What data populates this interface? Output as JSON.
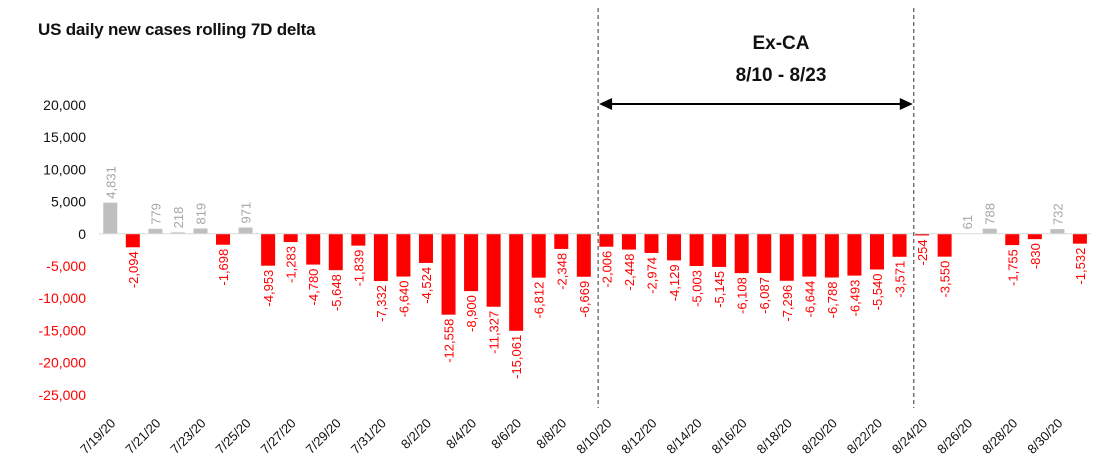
{
  "chart_data": {
    "type": "bar",
    "title": "US daily new cases rolling 7D delta",
    "xlabel": "",
    "ylabel": "",
    "ylim": [
      -25000,
      20000
    ],
    "yticks": [
      20000,
      15000,
      10000,
      5000,
      0,
      -5000,
      -10000,
      -15000,
      -20000,
      -25000
    ],
    "ytick_labels": [
      "20,000",
      "15,000",
      "10,000",
      "5,000",
      "0",
      "-5,000",
      "-10,000",
      "-15,000",
      "-20,000",
      "-25,000"
    ],
    "categories": [
      "7/19/20",
      "7/20/20",
      "7/21/20",
      "7/22/20",
      "7/23/20",
      "7/24/20",
      "7/25/20",
      "7/26/20",
      "7/27/20",
      "7/28/20",
      "7/29/20",
      "7/30/20",
      "7/31/20",
      "8/1/20",
      "8/2/20",
      "8/3/20",
      "8/4/20",
      "8/5/20",
      "8/6/20",
      "8/7/20",
      "8/8/20",
      "8/9/20",
      "8/10/20",
      "8/11/20",
      "8/12/20",
      "8/13/20",
      "8/14/20",
      "8/15/20",
      "8/16/20",
      "8/17/20",
      "8/18/20",
      "8/19/20",
      "8/20/20",
      "8/21/20",
      "8/22/20",
      "8/23/20",
      "8/24/20",
      "8/25/20",
      "8/26/20",
      "8/27/20",
      "8/28/20",
      "8/29/20",
      "8/30/20",
      "8/31/20"
    ],
    "values": [
      4831,
      -2094,
      779,
      218,
      819,
      -1698,
      971,
      -4953,
      -1283,
      -4780,
      -5648,
      -1839,
      -7332,
      -6640,
      -4524,
      -12558,
      -8900,
      -11327,
      -15061,
      -6812,
      -2348,
      -6669,
      -2006,
      -2448,
      -2974,
      -4129,
      -5003,
      -5145,
      -6108,
      -6087,
      -7296,
      -6644,
      -6788,
      -6493,
      -5540,
      -3571,
      -254,
      -3550,
      61,
      788,
      -1755,
      -830,
      732,
      -1532
    ],
    "value_labels": [
      "4,831",
      "-2,094",
      "779",
      "218",
      "819",
      "-1,698",
      "971",
      "-4,953",
      "-1,283",
      "-4,780",
      "-5,648",
      "-1,839",
      "-7,332",
      "-6,640",
      "-4,524",
      "-12,558",
      "-8,900",
      "-11,327",
      "-15,061",
      "-6,812",
      "-2,348",
      "-6,669",
      "-2,006",
      "-2,448",
      "-2,974",
      "-4,129",
      "-5,003",
      "-5,145",
      "-6,108",
      "-6,087",
      "-7,296",
      "-6,644",
      "-6,788",
      "-6,493",
      "-5,540",
      "-3,571",
      "-254",
      "-3,550",
      "61",
      "788",
      "-1,755",
      "-830",
      "732",
      "-1,532"
    ],
    "x_tick_labels": [
      "7/19/20",
      "7/21/20",
      "7/23/20",
      "7/25/20",
      "7/27/20",
      "7/29/20",
      "7/31/20",
      "8/2/20",
      "8/4/20",
      "8/6/20",
      "8/8/20",
      "8/10/20",
      "8/12/20",
      "8/14/20",
      "8/16/20",
      "8/18/20",
      "8/20/20",
      "8/22/20",
      "8/24/20",
      "8/26/20",
      "8/28/20",
      "8/30/20"
    ],
    "colors": {
      "positive": "#bfbfbf",
      "negative": "#ff0000",
      "positive_label": "#a6a6a6",
      "negative_label": "#ff0000",
      "axis_label_pos": "#111111"
    },
    "annotation": {
      "line1": "Ex-CA",
      "line2": "8/10 - 8/23",
      "start_category": "8/10/20",
      "end_category": "8/24/20"
    },
    "grid": false,
    "legend": "none"
  }
}
